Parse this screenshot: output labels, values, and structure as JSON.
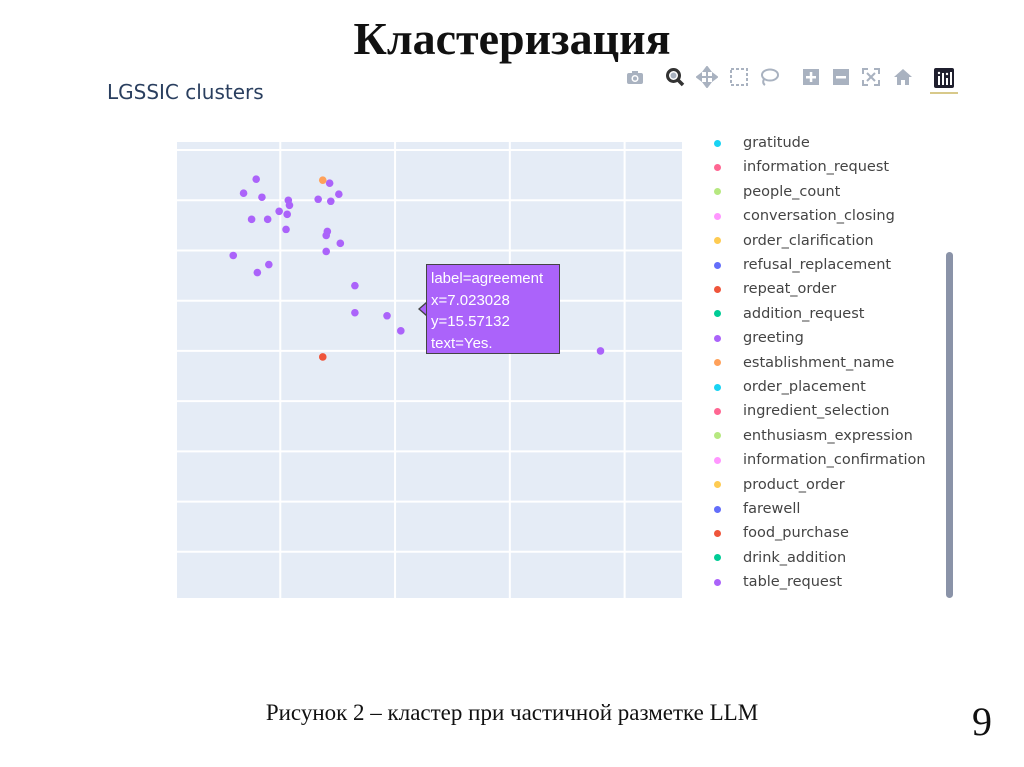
{
  "slide": {
    "title": "Кластеризация",
    "caption": "Рисунок 2 – кластер при частичной разметке LLM",
    "page_number": "9"
  },
  "modebar": [
    {
      "icon": "camera-icon"
    },
    {
      "icon": "zoom-icon"
    },
    {
      "icon": "pan-icon"
    },
    {
      "icon": "box-select-icon"
    },
    {
      "icon": "lasso-select-icon"
    },
    {
      "icon": "zoom-in-icon"
    },
    {
      "icon": "zoom-out-icon"
    },
    {
      "icon": "autoscale-icon"
    },
    {
      "icon": "home-icon"
    },
    {
      "icon": "plotly-logo-icon"
    }
  ],
  "tooltip": {
    "line1": "label=agreement",
    "line2": "x=7.023028",
    "line3": "y=15.57132",
    "line4": "text=Yes.",
    "color": "#ab63fa"
  },
  "chart_data": {
    "type": "scatter",
    "title": "LGSSIC clusters",
    "xlabel": "",
    "ylabel": "",
    "xlim": [
      5.6,
      10.0
    ],
    "ylim": [
      12.04,
      16.58
    ],
    "grid": true,
    "legend_position": "right",
    "plot_background": "#e5ecf6",
    "legend": [
      {
        "name": "gratitude",
        "color": "#19d3f3"
      },
      {
        "name": "information_request",
        "color": "#ff6692"
      },
      {
        "name": "people_count",
        "color": "#b6e880"
      },
      {
        "name": "conversation_closing",
        "color": "#ff97ff"
      },
      {
        "name": "order_clarification",
        "color": "#fecb52"
      },
      {
        "name": "refusal_replacement",
        "color": "#636efa"
      },
      {
        "name": "repeat_order",
        "color": "#ef553b"
      },
      {
        "name": "addition_request",
        "color": "#00cc96"
      },
      {
        "name": "greeting",
        "color": "#ab63fa"
      },
      {
        "name": "establishment_name",
        "color": "#ffa15a"
      },
      {
        "name": "order_placement",
        "color": "#19d3f3"
      },
      {
        "name": "ingredient_selection",
        "color": "#ff6692"
      },
      {
        "name": "enthusiasm_expression",
        "color": "#b6e880"
      },
      {
        "name": "information_confirmation",
        "color": "#ff97ff"
      },
      {
        "name": "product_order",
        "color": "#fecb52"
      },
      {
        "name": "farewell",
        "color": "#636efa"
      },
      {
        "name": "food_purchase",
        "color": "#ef553b"
      },
      {
        "name": "drink_addition",
        "color": "#00cc96"
      },
      {
        "name": "table_request",
        "color": "#ab63fa"
      }
    ],
    "points": [
      {
        "x": 6.29,
        "y": 16.21,
        "color": "#ab63fa"
      },
      {
        "x": 6.18,
        "y": 16.07,
        "color": "#ab63fa"
      },
      {
        "x": 6.34,
        "y": 16.03,
        "color": "#ab63fa"
      },
      {
        "x": 6.87,
        "y": 16.2,
        "color": "#ffa15a"
      },
      {
        "x": 6.93,
        "y": 16.17,
        "color": "#ab63fa"
      },
      {
        "x": 7.01,
        "y": 16.06,
        "color": "#ab63fa"
      },
      {
        "x": 6.57,
        "y": 16.0,
        "color": "#ab63fa"
      },
      {
        "x": 6.83,
        "y": 16.01,
        "color": "#ab63fa"
      },
      {
        "x": 6.94,
        "y": 15.99,
        "color": "#ab63fa"
      },
      {
        "x": 6.58,
        "y": 15.95,
        "color": "#ab63fa"
      },
      {
        "x": 6.49,
        "y": 15.89,
        "color": "#ab63fa"
      },
      {
        "x": 6.56,
        "y": 15.86,
        "color": "#ab63fa"
      },
      {
        "x": 6.25,
        "y": 15.81,
        "color": "#ab63fa"
      },
      {
        "x": 6.39,
        "y": 15.81,
        "color": "#ab63fa"
      },
      {
        "x": 6.55,
        "y": 15.71,
        "color": "#ab63fa"
      },
      {
        "x": 6.91,
        "y": 15.69,
        "color": "#ab63fa"
      },
      {
        "x": 6.9,
        "y": 15.65,
        "color": "#ab63fa"
      },
      {
        "x": 7.023,
        "y": 15.571,
        "color": "#ab63fa"
      },
      {
        "x": 6.9,
        "y": 15.49,
        "color": "#ab63fa"
      },
      {
        "x": 6.09,
        "y": 15.45,
        "color": "#ab63fa"
      },
      {
        "x": 6.4,
        "y": 15.36,
        "color": "#ab63fa"
      },
      {
        "x": 6.3,
        "y": 15.28,
        "color": "#ab63fa"
      },
      {
        "x": 7.15,
        "y": 15.15,
        "color": "#ab63fa"
      },
      {
        "x": 7.15,
        "y": 14.88,
        "color": "#ab63fa"
      },
      {
        "x": 7.43,
        "y": 14.85,
        "color": "#ab63fa"
      },
      {
        "x": 7.55,
        "y": 14.7,
        "color": "#ab63fa"
      },
      {
        "x": 6.87,
        "y": 14.44,
        "color": "#ef553b"
      },
      {
        "x": 9.29,
        "y": 14.5,
        "color": "#ab63fa"
      }
    ],
    "hover": {
      "label": "agreement",
      "x": 7.023028,
      "y": 15.57132,
      "text": "Yes."
    }
  }
}
